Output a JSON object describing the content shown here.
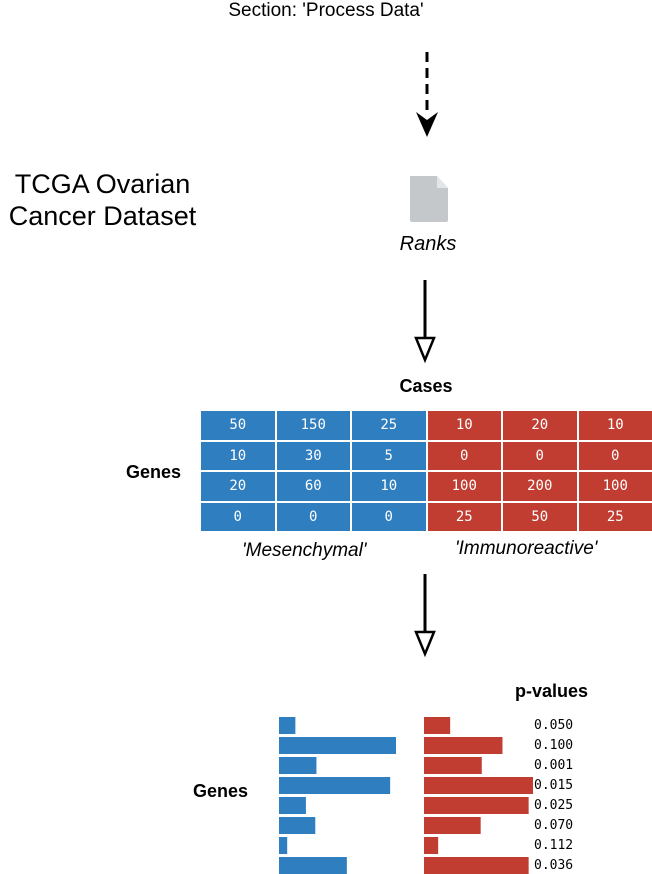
{
  "section_title": "Section: 'Process Data'",
  "dataset_title_line1": "TCGA Ovarian",
  "dataset_title_line2": "Cancer Dataset",
  "file_label": "Ranks",
  "matrix": {
    "cases_label": "Cases",
    "genes_label": "Genes",
    "group_left_label": "'Mesenchymal'",
    "group_right_label": "'Immunoreactive'",
    "rows": [
      [
        "50",
        "150",
        "25",
        "10",
        "20",
        "10"
      ],
      [
        "10",
        "30",
        "5",
        "0",
        "0",
        "0"
      ],
      [
        "20",
        "60",
        "10",
        "100",
        "200",
        "100"
      ],
      [
        "0",
        "0",
        "0",
        "25",
        "50",
        "25"
      ]
    ],
    "colors": {
      "left": "#2f7ec0",
      "right": "#c13d31"
    }
  },
  "bars": {
    "genes_label": "Genes",
    "pvalues_title": "p-values",
    "blue_values": [
      0.14,
      1.0,
      0.32,
      0.95,
      0.23,
      0.31,
      0.07,
      0.58
    ],
    "red_values": [
      0.24,
      0.72,
      0.53,
      1.0,
      0.96,
      0.52,
      0.13,
      0.96
    ],
    "pvalues": [
      "0.050",
      "0.100",
      "0.001",
      "0.015",
      "0.025",
      "0.070",
      "0.112",
      "0.036"
    ]
  }
}
